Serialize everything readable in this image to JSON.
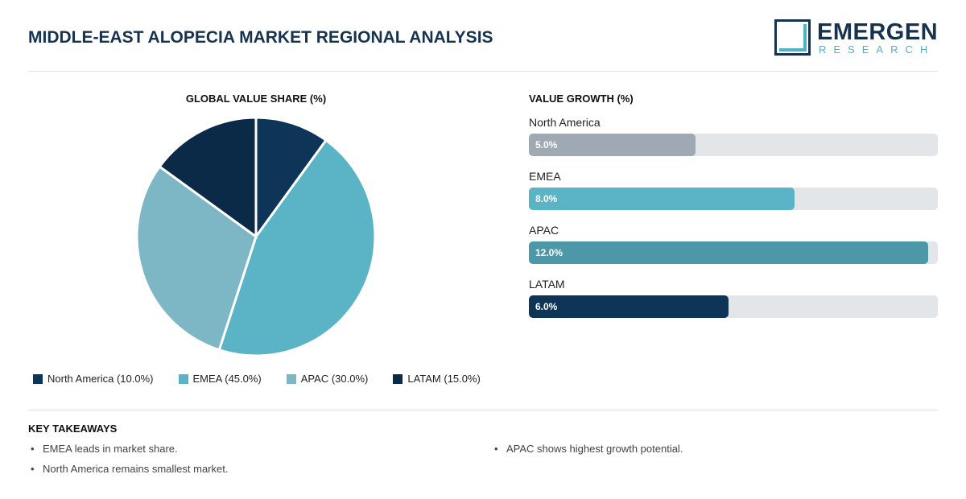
{
  "header": {
    "title": "MIDDLE-EAST ALOPECIA MARKET REGIONAL ANALYSIS",
    "logo_word": "EMERGEN",
    "logo_sub": "RESEARCH"
  },
  "colors": {
    "north_america": "#0e3558",
    "emea": "#5ab4c6",
    "apac": "#7db7c5",
    "latam": "#0b2a48",
    "bar_north_america": "#9ea9b3",
    "bar_emea": "#5ab4c6",
    "bar_apac": "#4c98a8",
    "bar_latam": "#0e3558",
    "track": "#e3e6e9"
  },
  "chart_data": [
    {
      "type": "pie",
      "title": "GLOBAL VALUE SHARE (%)",
      "categories": [
        "North America",
        "EMEA",
        "APAC",
        "LATAM"
      ],
      "values": [
        10.0,
        45.0,
        30.0,
        15.0
      ],
      "legend": [
        "North America (10.0%)",
        "EMEA (45.0%)",
        "APAC (30.0%)",
        "LATAM (15.0%)"
      ],
      "legend_position": "bottom"
    },
    {
      "type": "bar",
      "orientation": "horizontal",
      "title": "VALUE GROWTH (%)",
      "categories": [
        "North America",
        "EMEA",
        "APAC",
        "LATAM"
      ],
      "values": [
        5.0,
        8.0,
        12.0,
        6.0
      ],
      "value_labels": [
        "5.0%",
        "8.0%",
        "12.0%",
        "6.0%"
      ],
      "xlim": [
        0,
        12.3
      ]
    }
  ],
  "takeaways": {
    "title": "KEY TAKEAWAYS",
    "items": [
      "EMEA leads in market share.",
      "North America remains smallest market.",
      "APAC shows highest growth potential."
    ]
  }
}
